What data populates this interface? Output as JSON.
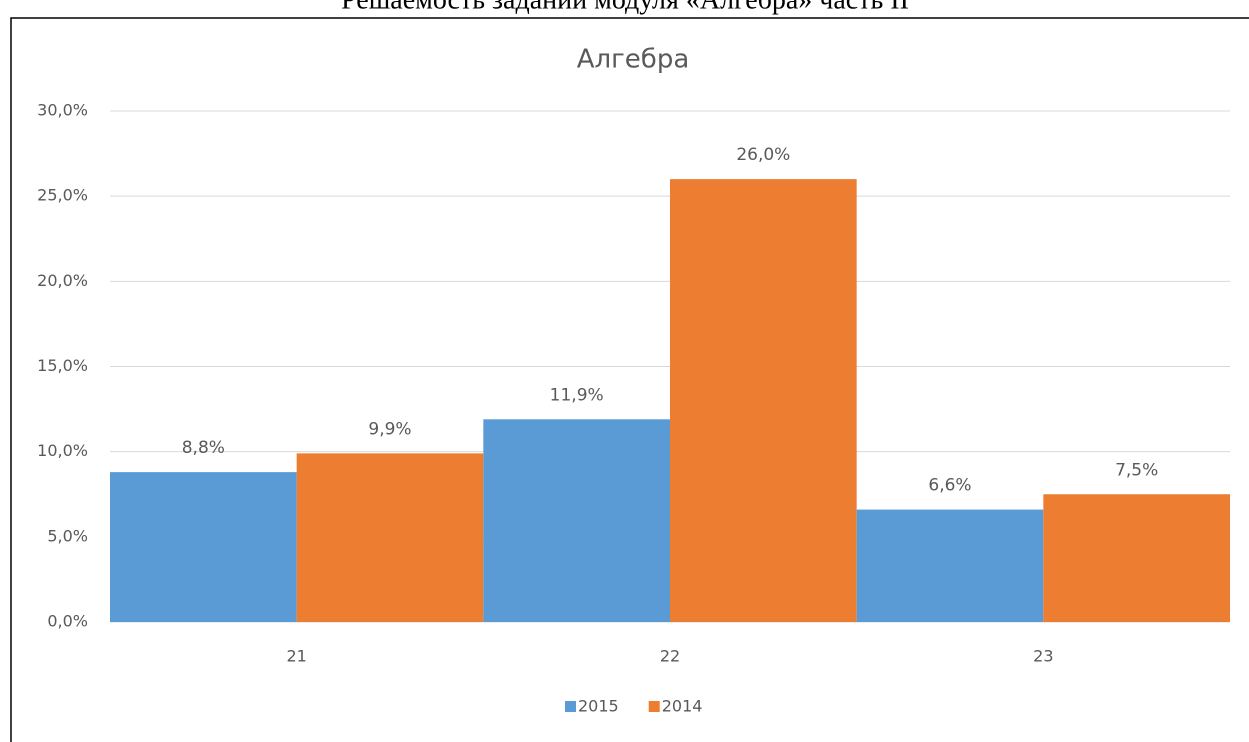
{
  "header": "Решаемость заданий модуля «Алгебра» часть II",
  "chart_data": {
    "type": "bar",
    "title": "Алгебра",
    "categories": [
      "21",
      "22",
      "23"
    ],
    "series": [
      {
        "name": "2015",
        "color": "#5b9bd5",
        "values": [
          8.8,
          11.9,
          6.6
        ],
        "value_labels": [
          "8,8%",
          "11,9%",
          "6,6%"
        ]
      },
      {
        "name": "2014",
        "color": "#ed7d31",
        "values": [
          9.9,
          26.0,
          7.5
        ],
        "value_labels": [
          "9,9%",
          "26,0%",
          "7,5%"
        ]
      }
    ],
    "ylim": [
      0,
      30
    ],
    "yticks": [
      {
        "value": 0,
        "label": "0,0%"
      },
      {
        "value": 5,
        "label": "5,0%"
      },
      {
        "value": 10,
        "label": "10,0%"
      },
      {
        "value": 15,
        "label": "15,0%"
      },
      {
        "value": 20,
        "label": "20,0%"
      },
      {
        "value": 25,
        "label": "25,0%"
      },
      {
        "value": 30,
        "label": "30,0%"
      }
    ],
    "grid": true,
    "legend": "bottom"
  }
}
